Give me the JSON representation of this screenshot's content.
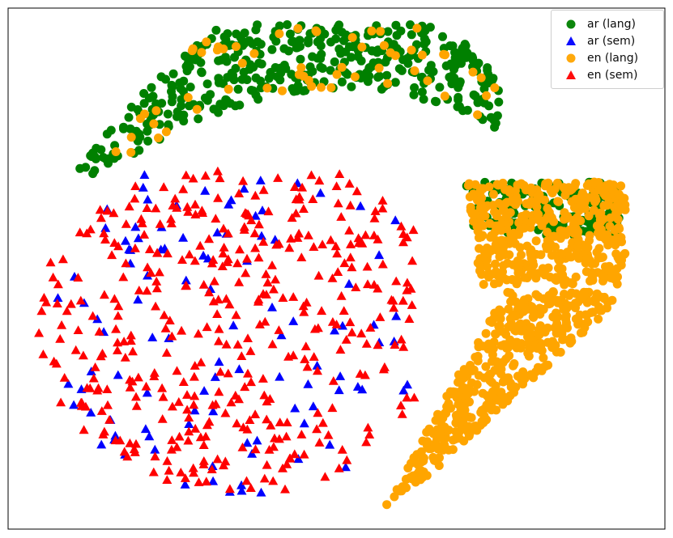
{
  "chart_data": {
    "type": "scatter",
    "title": "",
    "xlabel": "",
    "ylabel": "",
    "xlim": [
      -100,
      100
    ],
    "ylim": [
      -80,
      80
    ],
    "axes_ticks": "hidden",
    "grid": false,
    "legend_position": "top-right",
    "series": [
      {
        "name": "ar (lang)",
        "marker": "circle",
        "color": "#008000",
        "clusters": [
          {
            "region": "upper arc",
            "x_range": [
              -84,
              50
            ],
            "y_range": [
              28,
              75
            ],
            "density": "high"
          },
          {
            "region": "right band",
            "x_range": [
              35,
              86
            ],
            "y_range": [
              10,
              47
            ],
            "density": "medium"
          }
        ]
      },
      {
        "name": "ar (sem)",
        "marker": "triangle",
        "color": "#0000ff",
        "clusters": [
          {
            "region": "lower-left cloud",
            "x_range": [
              -92,
              24
            ],
            "y_range": [
              -70,
              30
            ],
            "density": "high"
          }
        ]
      },
      {
        "name": "en (lang)",
        "marker": "circle",
        "color": "#ffa500",
        "clusters": [
          {
            "region": "upper arc (sparse)",
            "x_range": [
              -80,
              50
            ],
            "y_range": [
              30,
              74
            ],
            "density": "low"
          },
          {
            "region": "right band",
            "x_range": [
              40,
              88
            ],
            "y_range": [
              -5,
              42
            ],
            "density": "high"
          },
          {
            "region": "lower-right tail",
            "x_range": [
              14,
              84
            ],
            "y_range": [
              -76,
              5
            ],
            "density": "high"
          }
        ]
      },
      {
        "name": "en (sem)",
        "marker": "triangle",
        "color": "#ff0000",
        "clusters": [
          {
            "region": "lower-left cloud",
            "x_range": [
              -92,
              24
            ],
            "y_range": [
              -70,
              30
            ],
            "density": "high"
          }
        ]
      }
    ]
  }
}
